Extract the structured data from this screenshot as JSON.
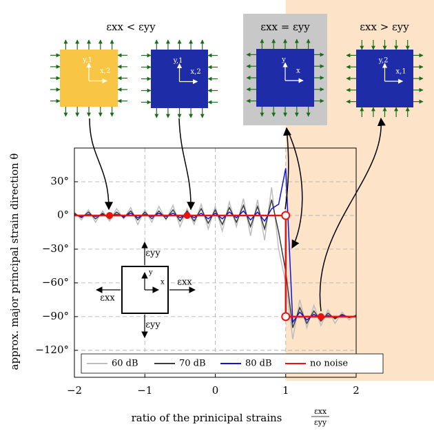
{
  "chart_data": {
    "type": "line",
    "x_label": "ratio of the prinicipal strains",
    "x_label_num": "εxx",
    "x_label_den": "εyy",
    "y_label": "approx. major principal strain direction θ",
    "xlim": [
      -2,
      2
    ],
    "ylim": [
      -144,
      60
    ],
    "xticks": [
      {
        "value": -2,
        "label": "−2"
      },
      {
        "value": -1,
        "label": "−1"
      },
      0,
      1,
      2
    ],
    "yticks": [
      {
        "value": 30,
        "label": "30°"
      },
      {
        "value": 0,
        "label": "0°"
      },
      {
        "value": -30,
        "label": "−30°"
      },
      {
        "value": -60,
        "label": "−60°"
      },
      {
        "value": -90,
        "label": "−90°"
      },
      {
        "value": -120,
        "label": "−120°"
      }
    ],
    "grid": true,
    "legend": "bottom-left",
    "x": [
      -2,
      -1.9,
      -1.8,
      -1.7,
      -1.6,
      -1.5,
      -1.4,
      -1.3,
      -1.2,
      -1.1,
      -1,
      -0.9,
      -0.8,
      -0.7,
      -0.6,
      -0.5,
      -0.4,
      -0.3,
      -0.2,
      -0.1,
      0,
      0.1,
      0.2,
      0.3,
      0.4,
      0.5,
      0.6,
      0.7,
      0.8,
      0.9,
      1,
      1.1,
      1.2,
      1.3,
      1.4,
      1.5,
      1.6,
      1.7,
      1.8,
      1.9,
      2
    ],
    "series": [
      {
        "name": "60 dB",
        "color": "#bdbdbd",
        "values": [
          3,
          -4,
          5,
          -6,
          4,
          -5,
          6,
          -3,
          7,
          -8,
          5,
          -6,
          8,
          -4,
          9,
          -10,
          6,
          -8,
          10,
          -12,
          8,
          -14,
          12,
          -10,
          15,
          -18,
          14,
          -22,
          25,
          -30,
          -60,
          -110,
          -75,
          -100,
          -80,
          -98,
          -84,
          -96,
          -86,
          -93,
          -88
        ]
      },
      {
        "name": "70 dB",
        "color": "#3a3a3a",
        "values": [
          2,
          -2,
          3,
          -3,
          2,
          -3,
          3,
          -2,
          4,
          -4,
          3,
          -3,
          4,
          -3,
          5,
          -5,
          4,
          -5,
          6,
          -7,
          5,
          -8,
          7,
          -6,
          9,
          -10,
          8,
          -12,
          14,
          -15,
          -50,
          -100,
          -82,
          -96,
          -85,
          -94,
          -87,
          -92,
          -88,
          -91,
          -89
        ]
      },
      {
        "name": "80 dB",
        "color": "#1010e0",
        "values": [
          1,
          -1,
          1,
          -1,
          1,
          -1,
          1,
          -1,
          2,
          -2,
          1,
          -1,
          2,
          -1,
          2,
          -2,
          1,
          -2,
          2,
          -3,
          2,
          -3,
          3,
          -2,
          4,
          -4,
          3,
          -5,
          6,
          10,
          42,
          -95,
          -86,
          -93,
          -88,
          -92,
          -89,
          -91,
          -89,
          -90,
          -90
        ]
      },
      {
        "name": "no noise",
        "color": "#ee1111",
        "x": [
          -2,
          1,
          1,
          2
        ],
        "values": [
          0,
          0,
          -90,
          -90
        ]
      }
    ],
    "markers": {
      "x": [
        -1.5,
        -0.4,
        1,
        1,
        1.5
      ],
      "y": [
        0,
        0,
        0,
        -90,
        -90
      ],
      "open": [
        false,
        false,
        true,
        true,
        false
      ],
      "color": "#ee1111"
    },
    "shaded_from": 1
  },
  "diagrams": {
    "titles": [
      "εxx < εyy",
      "εxx = εyy",
      "εxx > εyy"
    ],
    "panels": [
      {
        "y": "y,1",
        "x": "x,2"
      },
      {
        "y": "y,1",
        "x": "x,2"
      },
      {
        "y": "y",
        "x": "x"
      },
      {
        "y": "y,2",
        "x": "x,1"
      }
    ],
    "inset": {
      "top": "εyy",
      "bottom": "εyy",
      "left": "εxx",
      "right": "εxx",
      "y": "y",
      "x": "x"
    }
  }
}
